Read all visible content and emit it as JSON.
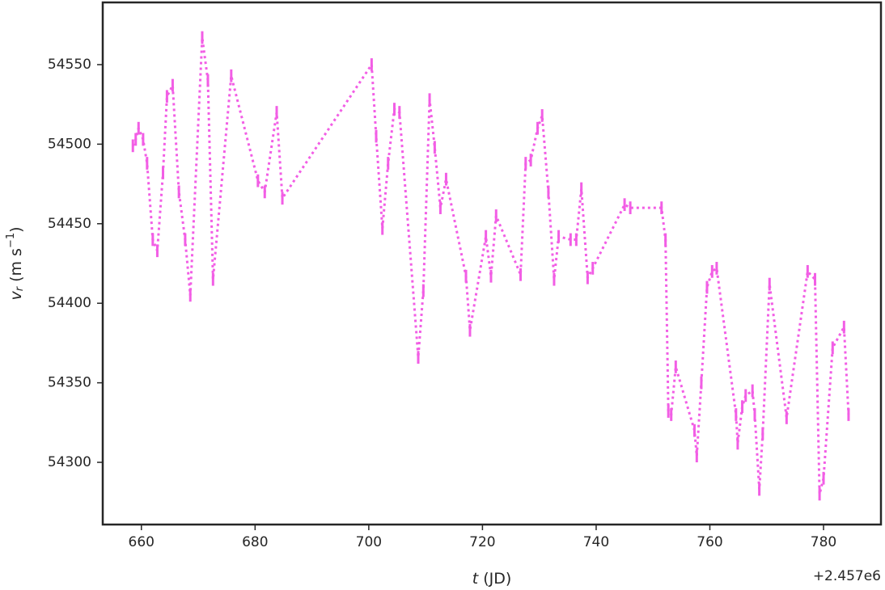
{
  "chart_data": {
    "type": "line",
    "xlabel_parts": [
      "t",
      " (JD)"
    ],
    "ylabel_parts": [
      "v",
      "r",
      " (m s",
      "−1",
      ")"
    ],
    "x_offset_label": "+2.457e6",
    "xlim": [
      653.2,
      790.1
    ],
    "ylim": [
      54260.9,
      54589.1
    ],
    "xticks": [
      660,
      680,
      700,
      720,
      740,
      760,
      780
    ],
    "yticks": [
      54300,
      54350,
      54400,
      54450,
      54500,
      54550
    ],
    "grid": false,
    "series": [
      {
        "color": "#f25ee5",
        "x": [
          658.5,
          659.0,
          659.5,
          660.3,
          661.0,
          662.0,
          662.8,
          663.8,
          664.5,
          665.5,
          666.6,
          667.7,
          668.6,
          670.7,
          671.7,
          672.6,
          675.8,
          680.5,
          681.7,
          683.8,
          684.8,
          700.5,
          701.3,
          702.4,
          703.4,
          704.5,
          705.4,
          708.7,
          709.6,
          710.7,
          711.6,
          712.6,
          713.6,
          717.1,
          717.8,
          720.6,
          721.5,
          722.4,
          726.7,
          727.6,
          728.5,
          729.7,
          730.5,
          731.6,
          732.6,
          733.4,
          735.5,
          736.5,
          737.4,
          738.5,
          739.4,
          745.0,
          746.0,
          751.5,
          752.2,
          752.7,
          753.2,
          754.0,
          757.3,
          757.7,
          758.5,
          759.5,
          760.4,
          761.2,
          764.6,
          764.9,
          765.7,
          766.3,
          767.5,
          767.9,
          768.7,
          769.3,
          770.5,
          773.5,
          777.2,
          778.5,
          779.3,
          780.0,
          781.6,
          783.6,
          784.4
        ],
        "values": [
          54499,
          54503,
          54510,
          54503,
          54488,
          54440,
          54433,
          54482,
          54530,
          54537,
          54470,
          54440,
          54405,
          54567,
          54540,
          54415,
          54543,
          54477,
          54470,
          54520,
          54466,
          54550,
          54505,
          54447,
          54488,
          54522,
          54520,
          54366,
          54408,
          54528,
          54498,
          54460,
          54478,
          54417,
          54383,
          54442,
          54417,
          54455,
          54418,
          54488,
          54490,
          54510,
          54518,
          54470,
          54415,
          54442,
          54440,
          54440,
          54472,
          54416,
          54422,
          54462,
          54460,
          54460,
          54440,
          54332,
          54330,
          54360,
          54320,
          54304,
          54350,
          54410,
          54420,
          54422,
          54330,
          54312,
          54335,
          54342,
          54345,
          54330,
          54283,
          54318,
          54412,
          54328,
          54420,
          54415,
          54280,
          54290,
          54372,
          54385,
          54330
        ],
        "errors": [
          4,
          4,
          4,
          4,
          4,
          4,
          4,
          4,
          4,
          4,
          4,
          4,
          4,
          4,
          4,
          4,
          4,
          4,
          4,
          4,
          4,
          4,
          4,
          4,
          4,
          4,
          4,
          4,
          4,
          4,
          4,
          4,
          4,
          4,
          4,
          4,
          4,
          4,
          4,
          4,
          4,
          4,
          4,
          4,
          4,
          4,
          4,
          4,
          4,
          4,
          4,
          4,
          4,
          4,
          4,
          4,
          4,
          4,
          4,
          4,
          4,
          4,
          4,
          4,
          4,
          4,
          4,
          4,
          4,
          4,
          4,
          4,
          4,
          4,
          4,
          4,
          4,
          4,
          4,
          4,
          4
        ]
      }
    ]
  }
}
